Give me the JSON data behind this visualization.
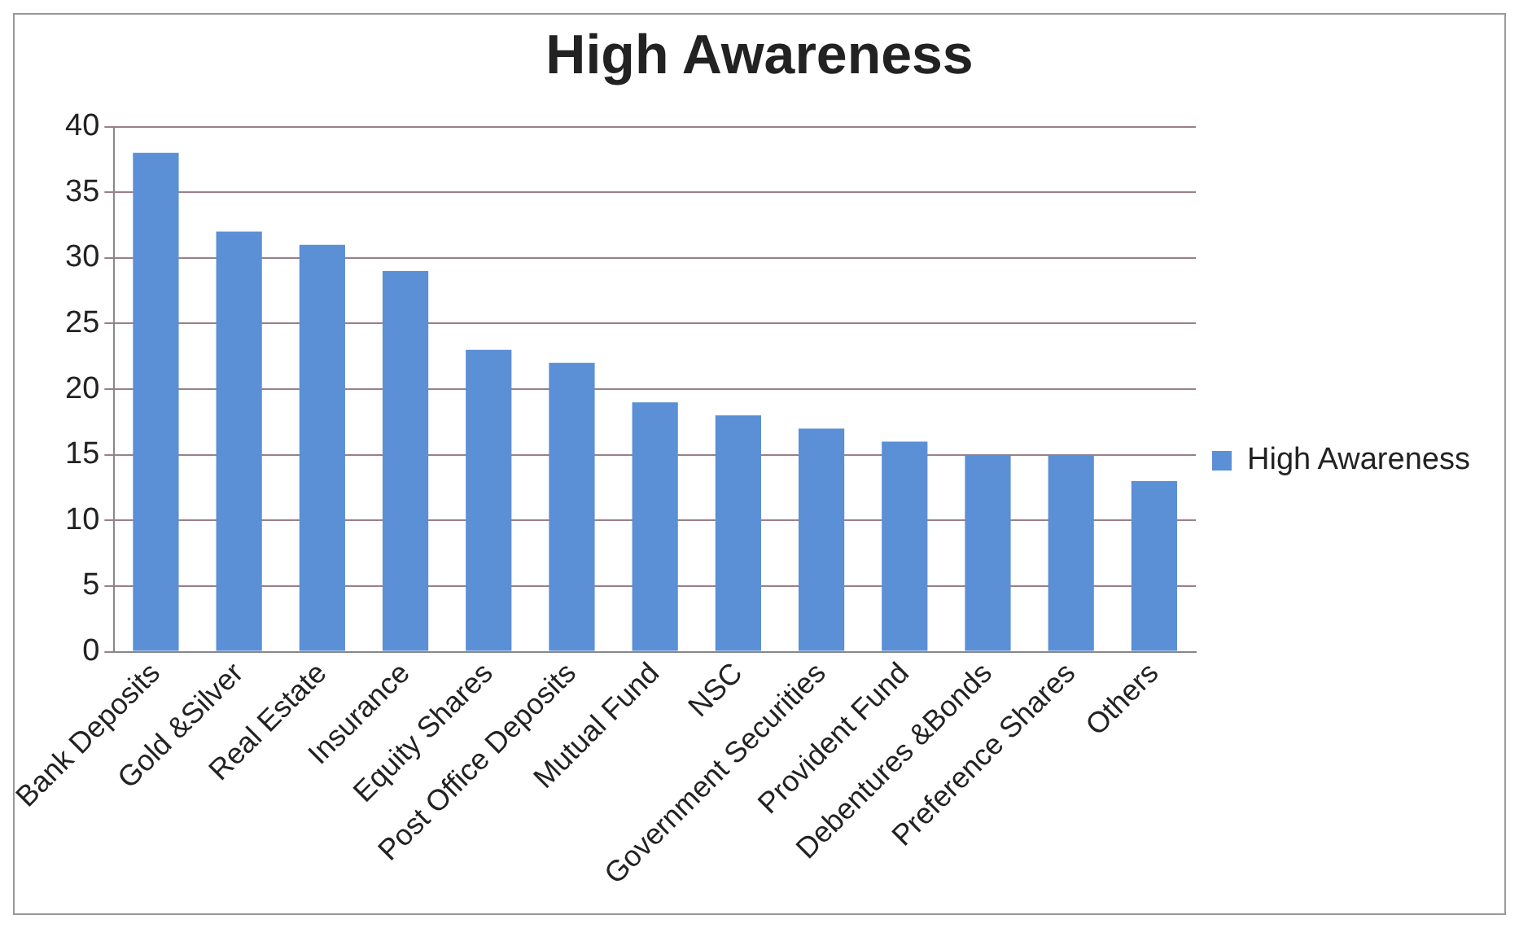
{
  "chart_data": {
    "type": "bar",
    "title": "High Awareness",
    "categories": [
      "Bank Deposits",
      "Gold &Silver",
      "Real Estate",
      "Insurance",
      "Equity Shares",
      "Post Office Deposits",
      "Mutual Fund",
      "NSC",
      "Government Securities",
      "Provident Fund",
      "Debentures &Bonds",
      "Preference Shares",
      "Others"
    ],
    "series": [
      {
        "name": "High Awareness",
        "color": "#5b8fd6",
        "values": [
          38,
          32,
          31,
          29,
          23,
          22,
          19,
          18,
          17,
          16,
          15,
          15,
          13
        ]
      }
    ],
    "ylim": [
      0,
      40
    ],
    "yticks": [
      0,
      5,
      10,
      15,
      20,
      25,
      30,
      35,
      40
    ],
    "grid": "y",
    "legend": "right"
  }
}
